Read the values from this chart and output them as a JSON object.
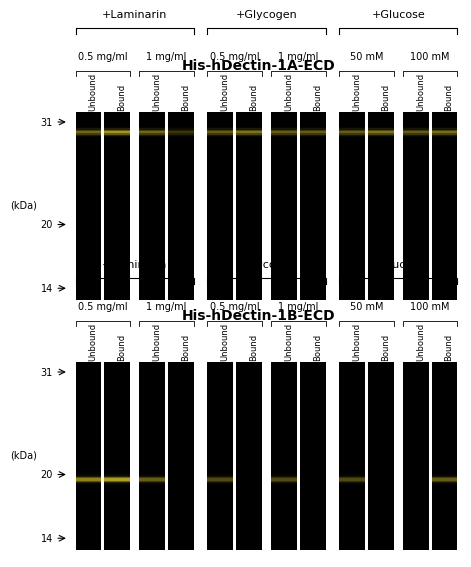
{
  "title_top": "His-hDectin-1A-ECD",
  "title_bottom": "His-hDectin-1B-ECD",
  "group_labels": [
    "+Laminarin",
    "+Glycogen",
    "+Glucose"
  ],
  "subgroup_labels": [
    "0.5 mg/ml",
    "1 mg/ml",
    "0.5 mg/ml",
    "1 mg/ml",
    "50 mM",
    "100 mM"
  ],
  "lane_labels": [
    "Unbound",
    "Bound"
  ],
  "mw_markers": [
    "31",
    "20",
    "14"
  ],
  "figure_bg": "#ffffff",
  "title_fontsize": 10,
  "group_label_fontsize": 8,
  "subgroup_label_fontsize": 7,
  "lane_label_fontsize": 6,
  "mw_fontsize": 7,
  "kdal_fontsize": 7,
  "panel_A_band_upper": [
    0.55,
    0.8,
    0.55,
    0.28,
    0.5,
    0.62,
    0.5,
    0.5,
    0.5,
    0.62,
    0.5,
    0.58
  ],
  "panel_A_band_lower": [
    0.0,
    0.0,
    0.0,
    0.0,
    0.0,
    0.0,
    0.0,
    0.0,
    0.0,
    0.0,
    0.0,
    0.0
  ],
  "panel_B_band_upper": [
    0.0,
    0.0,
    0.0,
    0.0,
    0.0,
    0.0,
    0.0,
    0.0,
    0.0,
    0.0,
    0.0,
    0.0
  ],
  "panel_B_band_lower": [
    0.7,
    0.85,
    0.5,
    0.0,
    0.4,
    0.0,
    0.4,
    0.0,
    0.4,
    0.0,
    0.0,
    0.5
  ]
}
